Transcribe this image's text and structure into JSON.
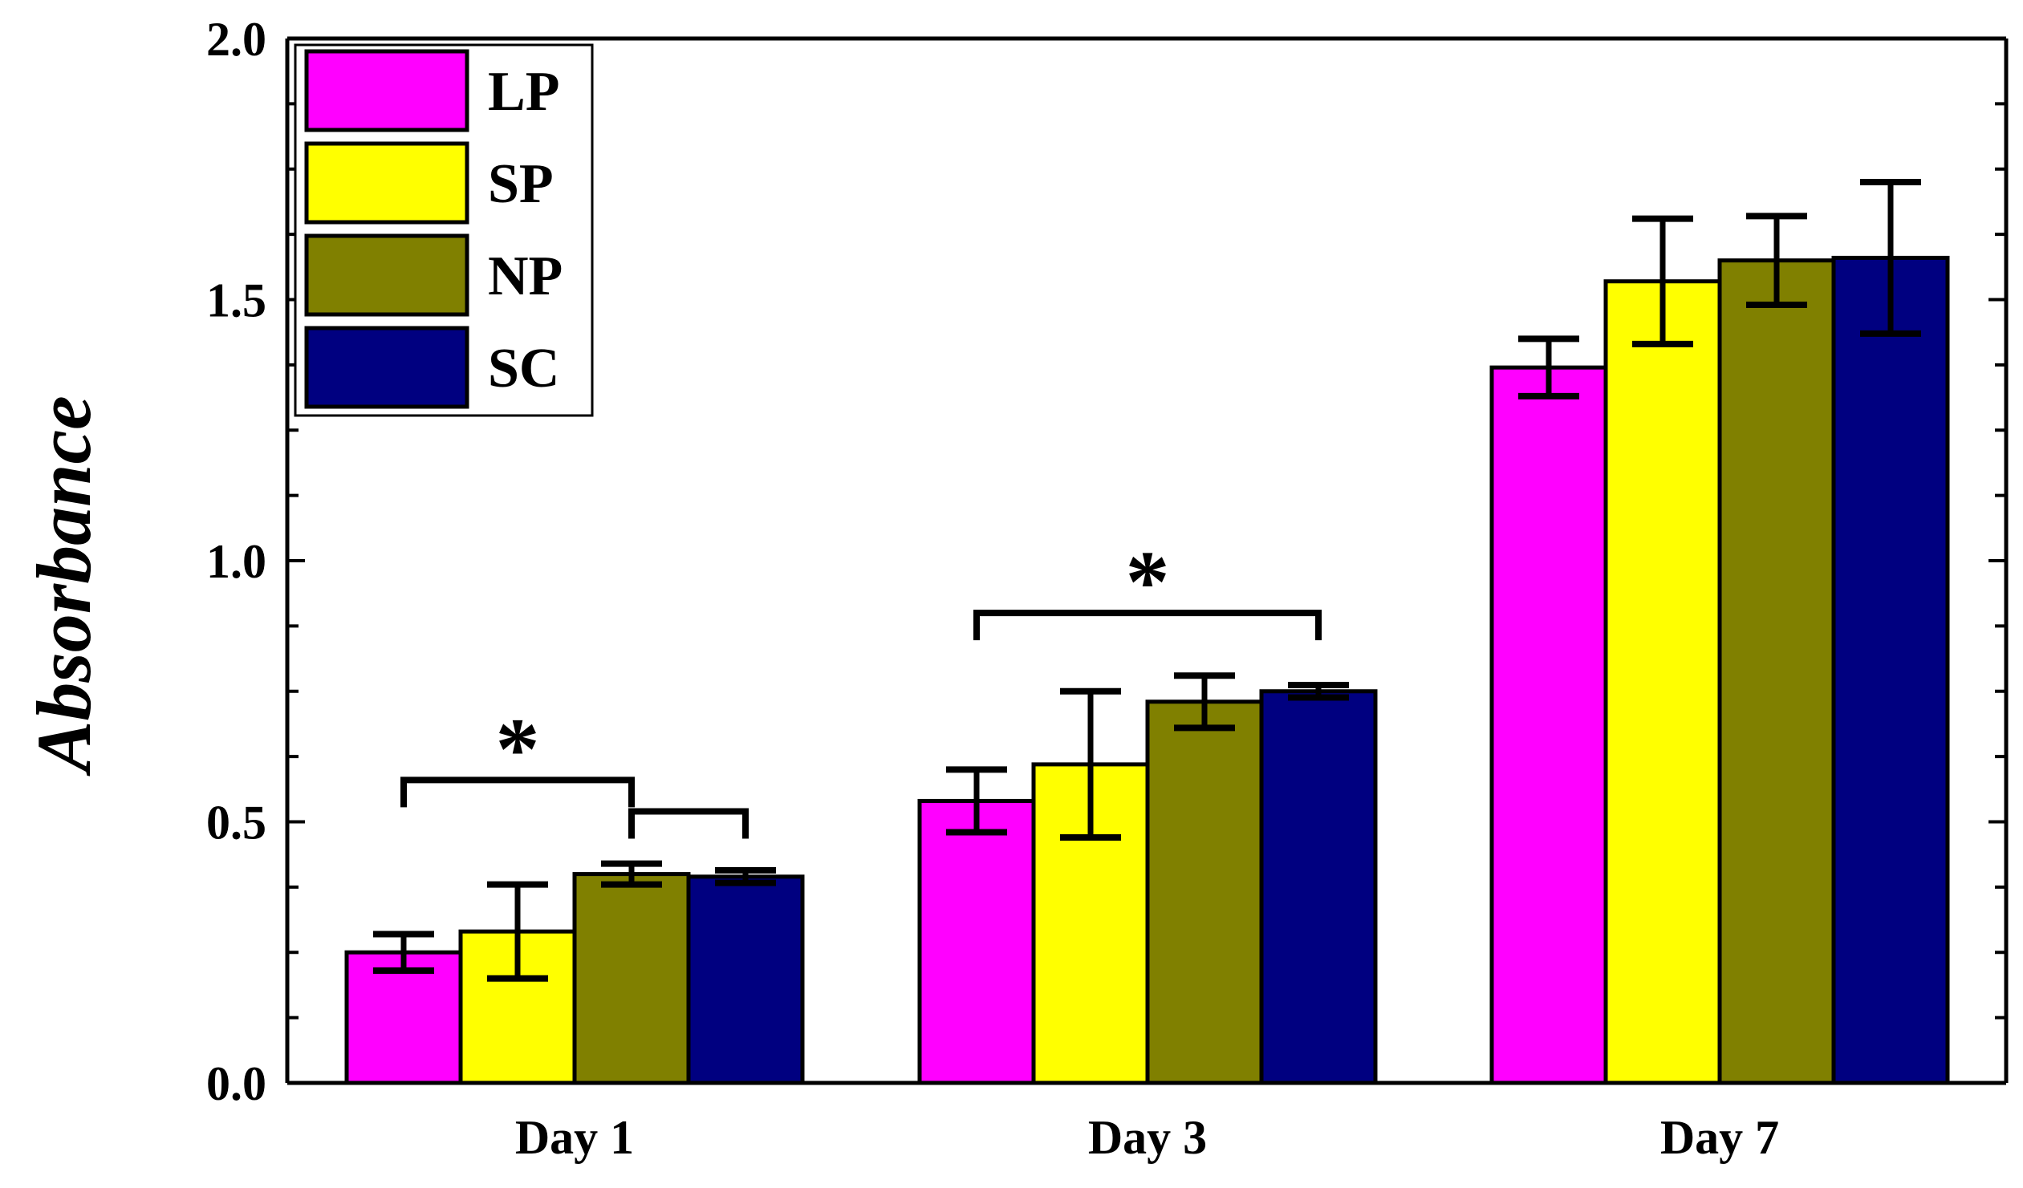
{
  "chart_data": {
    "type": "bar",
    "title": "",
    "xlabel": "",
    "ylabel": "Absorbance",
    "ylim": [
      0.0,
      2.0
    ],
    "yticks": [
      "0.0",
      "0.5",
      "1.0",
      "1.5",
      "2.0"
    ],
    "categories": [
      "Day 1",
      "Day 3",
      "Day 7"
    ],
    "series": [
      {
        "name": "LP",
        "color": "#ff00ff",
        "values": [
          0.25,
          0.54,
          1.37
        ],
        "errors": [
          0.035,
          0.06,
          0.055
        ]
      },
      {
        "name": "SP",
        "color": "#ffff00",
        "values": [
          0.29,
          0.61,
          1.535
        ],
        "errors": [
          0.09,
          0.14,
          0.12
        ]
      },
      {
        "name": "NP",
        "color": "#808000",
        "values": [
          0.4,
          0.73,
          1.575
        ],
        "errors": [
          0.02,
          0.05,
          0.085
        ]
      },
      {
        "name": "SC",
        "color": "#000080",
        "values": [
          0.395,
          0.75,
          1.58
        ],
        "errors": [
          0.012,
          0.012,
          0.145
        ]
      }
    ],
    "legend_position": "top-left",
    "annotations": [
      {
        "text": "*",
        "category": "Day 1",
        "from_series": "LP",
        "to_series": "NP",
        "level": 0.58
      },
      {
        "text": "",
        "category": "Day 1",
        "from_series": "NP",
        "to_series": "SC",
        "level": 0.52
      },
      {
        "text": "*",
        "category": "Day 3",
        "from_series": "LP",
        "to_series": "SC",
        "level": 0.9
      }
    ]
  }
}
